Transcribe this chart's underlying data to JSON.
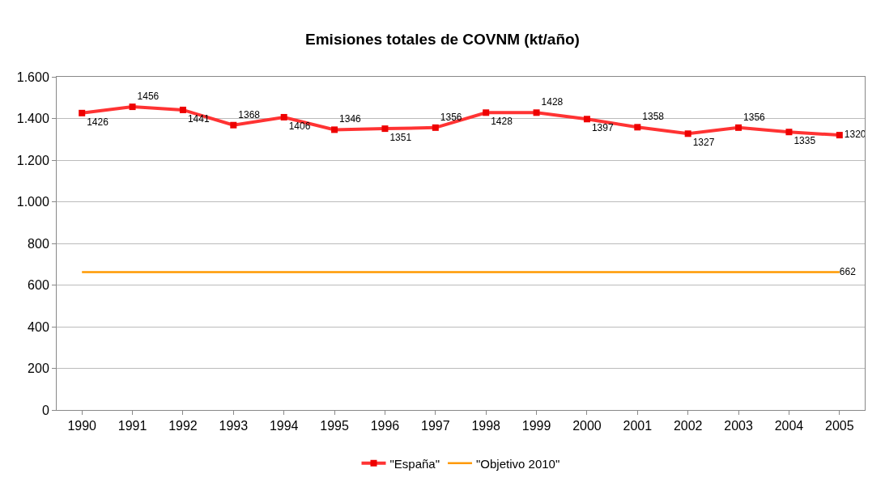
{
  "chart_data": {
    "type": "line",
    "title": "Emisiones totales de COVNM (kt/año)",
    "categories": [
      "1990",
      "1991",
      "1992",
      "1993",
      "1994",
      "1995",
      "1996",
      "1997",
      "1998",
      "1999",
      "2000",
      "2001",
      "2002",
      "2003",
      "2004",
      "2005"
    ],
    "series": [
      {
        "name": "\"España\"",
        "color": "#ff3333",
        "marker": "square",
        "values": [
          1426,
          1456,
          1441,
          1368,
          1406,
          1346,
          1351,
          1356,
          1428,
          1428,
          1397,
          1358,
          1327,
          1356,
          1335,
          1320
        ],
        "value_labels": [
          "1426",
          "1456",
          "1441",
          "1368",
          "1406",
          "1346",
          "1351",
          "1356",
          "1428",
          "1428",
          "1397",
          "1358",
          "1327",
          "1356",
          "1335",
          "1320"
        ]
      },
      {
        "name": "\"Objetivo 2010\"",
        "color": "#ff9900",
        "marker": "none",
        "values": [
          662,
          662,
          662,
          662,
          662,
          662,
          662,
          662,
          662,
          662,
          662,
          662,
          662,
          662,
          662,
          662
        ],
        "value_labels": [
          null,
          null,
          null,
          null,
          null,
          null,
          null,
          null,
          null,
          null,
          null,
          null,
          null,
          null,
          null,
          "662"
        ]
      }
    ],
    "ylim": [
      0,
      1600
    ],
    "yticks": [
      0,
      200,
      400,
      600,
      800,
      {
        "value": 1000,
        "label": "1.000"
      },
      {
        "value": 1200,
        "label": "1.200"
      },
      {
        "value": 1400,
        "label": "1.400"
      },
      {
        "value": 1600,
        "label": "1.600"
      }
    ],
    "grid": "y",
    "legend": "bottom"
  }
}
